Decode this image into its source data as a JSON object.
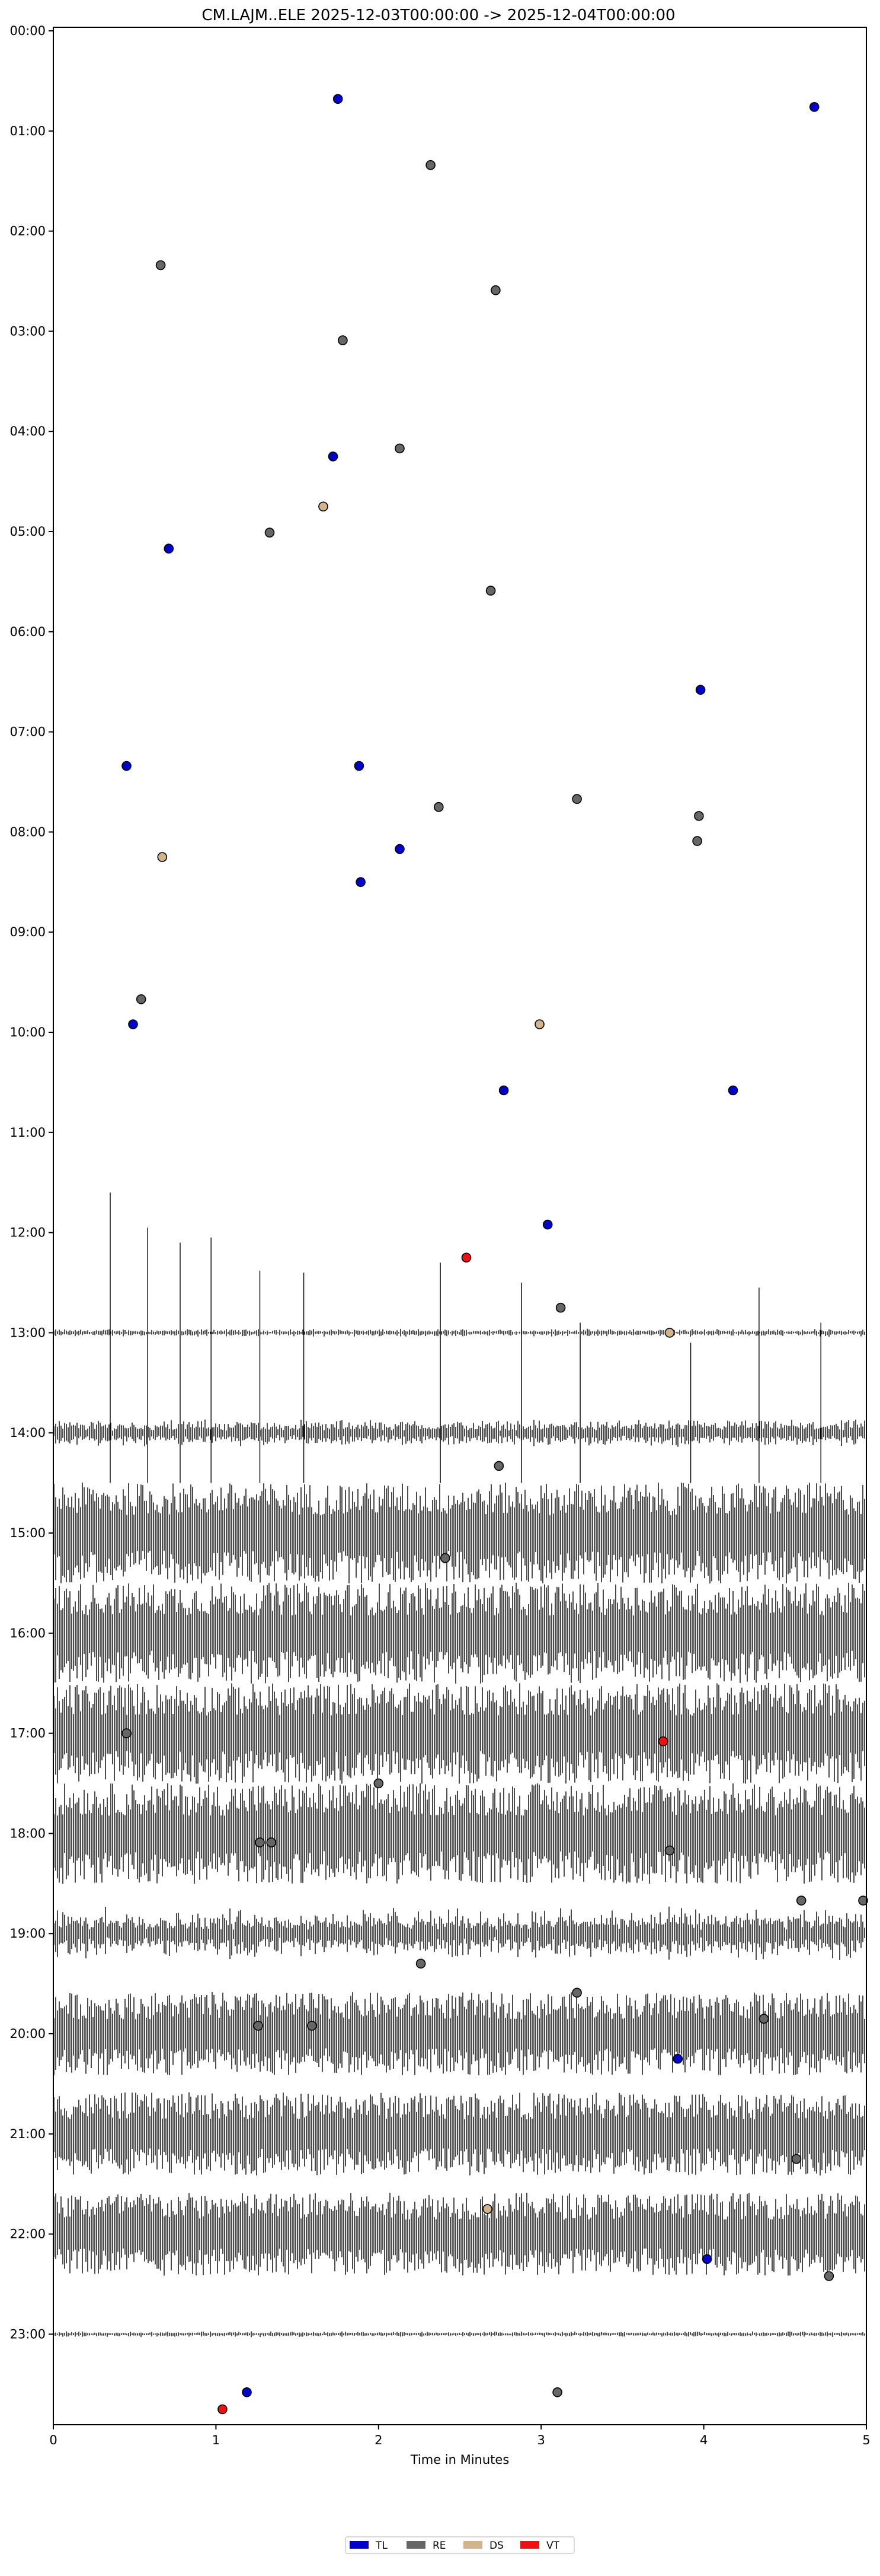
{
  "chart_data": {
    "type": "scatter",
    "title": "CM.LAJM..ELE  2025-12-03T00:00:00 -> 2025-12-04T00:00:00",
    "xlabel": "Time in Minutes",
    "ylabel": "",
    "xlim": [
      0,
      5
    ],
    "ylim_hours": [
      0,
      24
    ],
    "y_inverted": true,
    "grid": false,
    "legend_position": "bottom-center",
    "x_ticks": [
      "0",
      "1",
      "2",
      "3",
      "4",
      "5"
    ],
    "y_ticks": [
      "00:00",
      "01:00",
      "02:00",
      "03:00",
      "04:00",
      "05:00",
      "06:00",
      "07:00",
      "08:00",
      "09:00",
      "10:00",
      "11:00",
      "12:00",
      "13:00",
      "14:00",
      "15:00",
      "16:00",
      "17:00",
      "18:00",
      "19:00",
      "20:00",
      "21:00",
      "22:00",
      "23:00"
    ],
    "colors": {
      "TL": "#0000cc",
      "RE": "#666666",
      "DS": "#d2b48c",
      "VT": "#ee1111"
    },
    "series": [
      {
        "name": "TL",
        "color": "#0000cc",
        "points": [
          {
            "x": 1.75,
            "y": 0.68
          },
          {
            "x": 4.68,
            "y": 0.76
          },
          {
            "x": 1.72,
            "y": 4.25
          },
          {
            "x": 0.71,
            "y": 5.17
          },
          {
            "x": 3.98,
            "y": 6.58
          },
          {
            "x": 0.45,
            "y": 7.34
          },
          {
            "x": 1.88,
            "y": 7.34
          },
          {
            "x": 2.13,
            "y": 8.17
          },
          {
            "x": 1.89,
            "y": 8.5
          },
          {
            "x": 0.49,
            "y": 9.92
          },
          {
            "x": 2.77,
            "y": 10.58
          },
          {
            "x": 4.18,
            "y": 10.58
          },
          {
            "x": 3.04,
            "y": 11.92
          },
          {
            "x": 3.84,
            "y": 20.25
          },
          {
            "x": 4.02,
            "y": 22.25
          },
          {
            "x": 1.19,
            "y": 23.58
          }
        ]
      },
      {
        "name": "RE",
        "color": "#666666",
        "points": [
          {
            "x": 2.32,
            "y": 1.34
          },
          {
            "x": 0.66,
            "y": 2.34
          },
          {
            "x": 2.72,
            "y": 2.59
          },
          {
            "x": 1.78,
            "y": 3.09
          },
          {
            "x": 2.13,
            "y": 4.17
          },
          {
            "x": 1.33,
            "y": 5.01
          },
          {
            "x": 2.69,
            "y": 5.59
          },
          {
            "x": 2.37,
            "y": 7.75
          },
          {
            "x": 3.22,
            "y": 7.67
          },
          {
            "x": 3.97,
            "y": 7.84
          },
          {
            "x": 3.96,
            "y": 8.09
          },
          {
            "x": 0.54,
            "y": 9.67
          },
          {
            "x": 3.12,
            "y": 12.75
          },
          {
            "x": 2.74,
            "y": 14.33
          },
          {
            "x": 2.41,
            "y": 15.25
          },
          {
            "x": 0.45,
            "y": 17.0
          },
          {
            "x": 2.0,
            "y": 17.5
          },
          {
            "x": 1.27,
            "y": 18.09
          },
          {
            "x": 1.34,
            "y": 18.09
          },
          {
            "x": 3.79,
            "y": 18.17
          },
          {
            "x": 4.6,
            "y": 18.67
          },
          {
            "x": 4.98,
            "y": 18.67
          },
          {
            "x": 2.26,
            "y": 19.3
          },
          {
            "x": 3.22,
            "y": 19.59
          },
          {
            "x": 1.26,
            "y": 19.92
          },
          {
            "x": 1.59,
            "y": 19.92
          },
          {
            "x": 4.37,
            "y": 19.85
          },
          {
            "x": 4.57,
            "y": 21.25
          },
          {
            "x": 4.77,
            "y": 22.42
          },
          {
            "x": 3.1,
            "y": 23.58
          }
        ]
      },
      {
        "name": "DS",
        "color": "#d2b48c",
        "points": [
          {
            "x": 1.66,
            "y": 4.75
          },
          {
            "x": 0.67,
            "y": 8.25
          },
          {
            "x": 2.99,
            "y": 9.92
          },
          {
            "x": 3.79,
            "y": 13.0
          },
          {
            "x": 2.67,
            "y": 21.75
          }
        ]
      },
      {
        "name": "VT",
        "color": "#ee1111",
        "points": [
          {
            "x": 2.54,
            "y": 12.25
          },
          {
            "x": 3.75,
            "y": 17.08
          },
          {
            "x": 1.04,
            "y": 23.75
          }
        ]
      }
    ]
  }
}
